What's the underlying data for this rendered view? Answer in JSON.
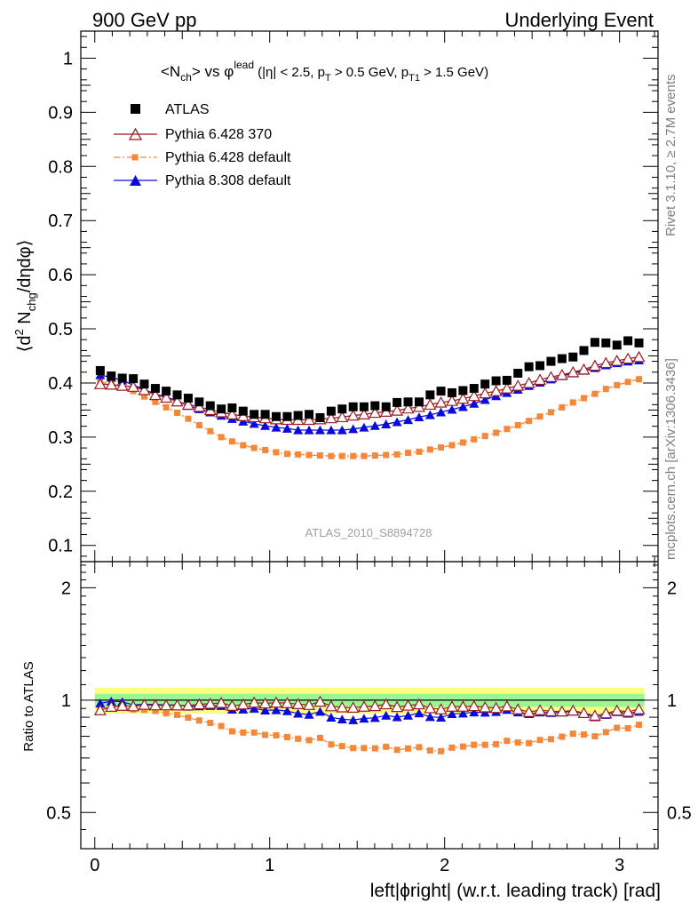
{
  "header": {
    "left": "900 GeV pp",
    "right": "Underlying Event"
  },
  "side_labels": {
    "rivet": "Rivet 3.1.10, ≥ 2.7M events",
    "mcplots": "mcplots.cern.ch [arXiv:1306.3436]"
  },
  "watermark": "ATLAS_2010_S8894728",
  "title": {
    "n_part": "<N",
    "n_sub": "ch",
    "mid": "> vs φ",
    "sup": "lead",
    "cuts_a": " (|η| < 2.5, p",
    "cuts_b": "T",
    "cuts_c": " > 0.5 GeV, p",
    "cuts_d": "T1",
    "cuts_e": " > 1.5 GeV)"
  },
  "ylabel_main": {
    "a": "⟨d",
    "b": "2",
    "c": " N",
    "d": "chg",
    "e": "/dηdφ⟩"
  },
  "ylabel_ratio": "Ratio to ATLAS",
  "xlabel": "left|ϕright| (w.r.t. leading track) [rad]",
  "legend": [
    "ATLAS",
    "Pythia 6.428 370",
    "Pythia 6.428 default",
    "Pythia 8.308 default"
  ],
  "colors": {
    "atlas": "#000000",
    "p6_370": "#9b1b22",
    "p6_default": "#f5873a",
    "p8": "#0a0adc",
    "band_inner": "#98f898",
    "band_outer": "#fdfd80"
  },
  "chart_data": [
    {
      "type": "scatter",
      "panel": "main",
      "xlim": [
        -0.08,
        3.22
      ],
      "ylim": [
        0.07,
        1.05
      ],
      "xticks": [
        0,
        1,
        2,
        3
      ],
      "yticks": [
        0.1,
        0.2,
        0.3,
        0.4,
        0.5,
        0.6,
        0.7,
        0.8,
        0.9,
        1
      ],
      "x": [
        0.031,
        0.094,
        0.157,
        0.22,
        0.283,
        0.346,
        0.408,
        0.471,
        0.534,
        0.597,
        0.66,
        0.723,
        0.785,
        0.848,
        0.911,
        0.974,
        1.037,
        1.1,
        1.162,
        1.225,
        1.288,
        1.351,
        1.414,
        1.477,
        1.539,
        1.602,
        1.665,
        1.728,
        1.791,
        1.854,
        1.917,
        1.979,
        2.042,
        2.105,
        2.168,
        2.231,
        2.294,
        2.356,
        2.419,
        2.482,
        2.545,
        2.608,
        2.671,
        2.734,
        2.796,
        2.859,
        2.922,
        2.985,
        3.048,
        3.111
      ],
      "series": [
        {
          "name": "ATLAS",
          "values": [
            0.423,
            0.413,
            0.409,
            0.408,
            0.398,
            0.39,
            0.385,
            0.378,
            0.372,
            0.365,
            0.358,
            0.352,
            0.354,
            0.348,
            0.342,
            0.342,
            0.338,
            0.338,
            0.34,
            0.342,
            0.336,
            0.348,
            0.352,
            0.356,
            0.356,
            0.358,
            0.356,
            0.364,
            0.365,
            0.365,
            0.378,
            0.385,
            0.382,
            0.386,
            0.39,
            0.398,
            0.404,
            0.405,
            0.418,
            0.43,
            0.432,
            0.44,
            0.445,
            0.448,
            0.46,
            0.475,
            0.474,
            0.47,
            0.478,
            0.474
          ]
        },
        {
          "name": "Pythia 6.428 370",
          "values": [
            0.398,
            0.397,
            0.395,
            0.393,
            0.387,
            0.378,
            0.373,
            0.366,
            0.36,
            0.356,
            0.35,
            0.346,
            0.342,
            0.339,
            0.337,
            0.335,
            0.333,
            0.332,
            0.332,
            0.332,
            0.333,
            0.335,
            0.337,
            0.34,
            0.342,
            0.345,
            0.347,
            0.349,
            0.353,
            0.356,
            0.36,
            0.364,
            0.367,
            0.371,
            0.376,
            0.381,
            0.385,
            0.39,
            0.395,
            0.4,
            0.406,
            0.411,
            0.415,
            0.42,
            0.425,
            0.432,
            0.437,
            0.441,
            0.445,
            0.448
          ]
        },
        {
          "name": "Pythia 6.428 default",
          "values": [
            0.402,
            0.398,
            0.392,
            0.385,
            0.375,
            0.365,
            0.355,
            0.345,
            0.334,
            0.322,
            0.311,
            0.3,
            0.292,
            0.285,
            0.28,
            0.276,
            0.272,
            0.269,
            0.268,
            0.267,
            0.266,
            0.265,
            0.265,
            0.265,
            0.265,
            0.266,
            0.267,
            0.268,
            0.271,
            0.273,
            0.277,
            0.281,
            0.285,
            0.29,
            0.296,
            0.302,
            0.308,
            0.315,
            0.322,
            0.33,
            0.338,
            0.346,
            0.355,
            0.364,
            0.372,
            0.38,
            0.389,
            0.396,
            0.402,
            0.407
          ]
        },
        {
          "name": "Pythia 8.308 default",
          "values": [
            0.415,
            0.41,
            0.405,
            0.396,
            0.388,
            0.38,
            0.374,
            0.367,
            0.358,
            0.352,
            0.346,
            0.34,
            0.334,
            0.329,
            0.325,
            0.321,
            0.318,
            0.316,
            0.313,
            0.313,
            0.313,
            0.313,
            0.313,
            0.315,
            0.318,
            0.321,
            0.324,
            0.328,
            0.332,
            0.337,
            0.341,
            0.346,
            0.351,
            0.356,
            0.362,
            0.369,
            0.376,
            0.382,
            0.388,
            0.395,
            0.401,
            0.407,
            0.413,
            0.418,
            0.423,
            0.428,
            0.433,
            0.437,
            0.44,
            0.442
          ]
        }
      ]
    },
    {
      "type": "scatter",
      "panel": "ratio",
      "xlim": [
        -0.08,
        3.22
      ],
      "ylim": [
        0.4,
        2.35
      ],
      "yscale": "log",
      "xticks": [
        0,
        1,
        2,
        3
      ],
      "yticks": [
        0.5,
        1,
        2
      ],
      "reference_band": {
        "inner": 0.04,
        "outer": 0.08
      },
      "x": [
        0.031,
        0.094,
        0.157,
        0.22,
        0.283,
        0.346,
        0.408,
        0.471,
        0.534,
        0.597,
        0.66,
        0.723,
        0.785,
        0.848,
        0.911,
        0.974,
        1.037,
        1.1,
        1.162,
        1.225,
        1.288,
        1.351,
        1.414,
        1.477,
        1.539,
        1.602,
        1.665,
        1.728,
        1.791,
        1.854,
        1.917,
        1.979,
        2.042,
        2.105,
        2.168,
        2.231,
        2.294,
        2.356,
        2.419,
        2.482,
        2.545,
        2.608,
        2.671,
        2.734,
        2.796,
        2.859,
        2.922,
        2.985,
        3.048,
        3.111
      ],
      "series": [
        {
          "name": "Pythia 6.428 370",
          "values": [
            0.94,
            0.96,
            0.966,
            0.963,
            0.972,
            0.969,
            0.969,
            0.968,
            0.968,
            0.975,
            0.978,
            0.983,
            0.966,
            0.974,
            0.985,
            0.98,
            0.985,
            0.982,
            0.976,
            0.971,
            0.991,
            0.963,
            0.957,
            0.955,
            0.961,
            0.964,
            0.975,
            0.959,
            0.967,
            0.975,
            0.952,
            0.945,
            0.961,
            0.961,
            0.964,
            0.957,
            0.953,
            0.963,
            0.945,
            0.93,
            0.94,
            0.934,
            0.933,
            0.938,
            0.924,
            0.909,
            0.922,
            0.938,
            0.931,
            0.945
          ]
        },
        {
          "name": "Pythia 6.428 default",
          "values": [
            0.95,
            0.964,
            0.958,
            0.944,
            0.942,
            0.936,
            0.922,
            0.913,
            0.898,
            0.882,
            0.869,
            0.852,
            0.825,
            0.819,
            0.819,
            0.807,
            0.805,
            0.796,
            0.788,
            0.781,
            0.792,
            0.761,
            0.753,
            0.744,
            0.744,
            0.743,
            0.75,
            0.736,
            0.742,
            0.748,
            0.733,
            0.73,
            0.746,
            0.751,
            0.759,
            0.759,
            0.762,
            0.778,
            0.77,
            0.767,
            0.782,
            0.786,
            0.798,
            0.813,
            0.809,
            0.8,
            0.821,
            0.843,
            0.841,
            0.859
          ]
        },
        {
          "name": "Pythia 8.308 default",
          "values": [
            0.981,
            0.993,
            0.99,
            0.971,
            0.975,
            0.974,
            0.971,
            0.971,
            0.962,
            0.964,
            0.966,
            0.966,
            0.944,
            0.945,
            0.95,
            0.939,
            0.941,
            0.935,
            0.921,
            0.915,
            0.932,
            0.899,
            0.889,
            0.885,
            0.893,
            0.897,
            0.91,
            0.901,
            0.91,
            0.923,
            0.902,
            0.899,
            0.919,
            0.922,
            0.928,
            0.927,
            0.931,
            0.943,
            0.928,
            0.919,
            0.928,
            0.925,
            0.928,
            0.933,
            0.92,
            0.901,
            0.914,
            0.93,
            0.921,
            0.932
          ]
        }
      ]
    }
  ]
}
